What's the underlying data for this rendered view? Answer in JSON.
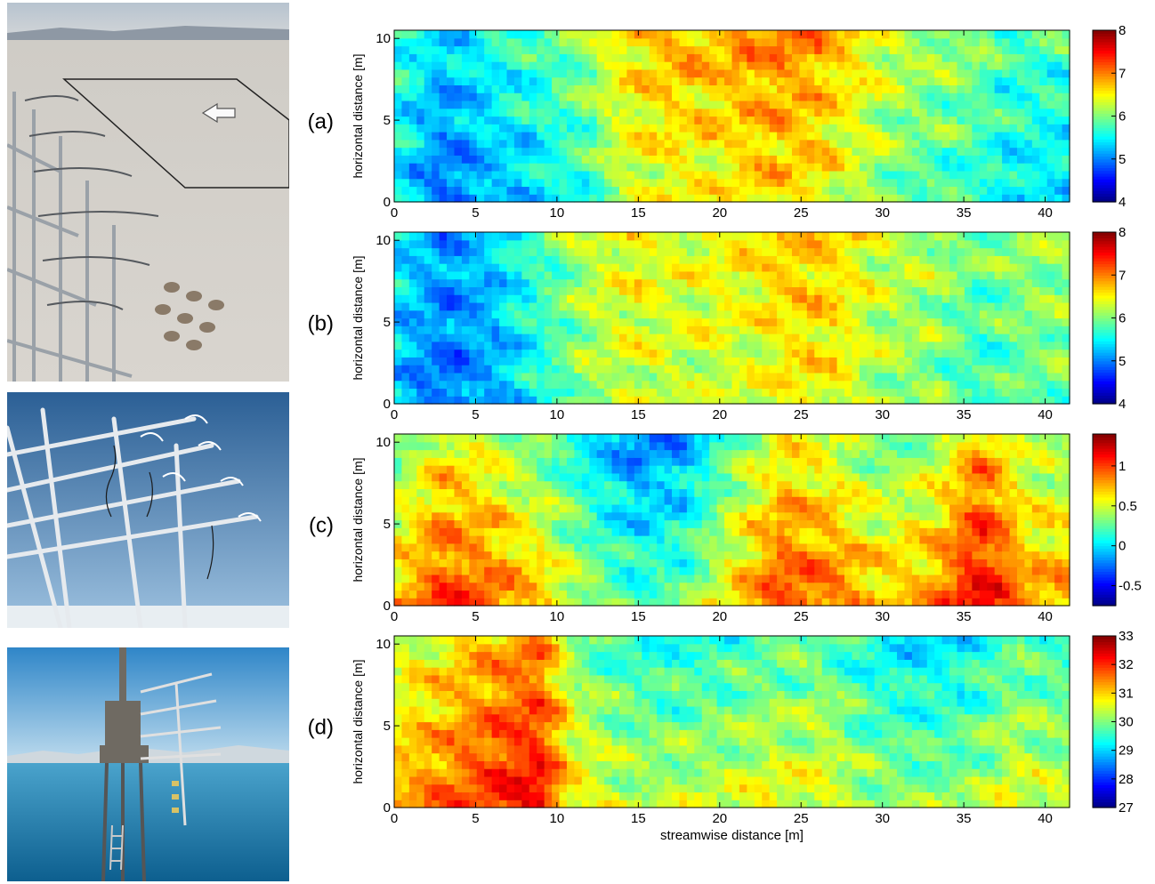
{
  "photos": [
    {
      "name": "salt-flat-sensor-array",
      "icon": "photo-salt-flat"
    },
    {
      "name": "sensor-frame-sky",
      "icon": "photo-sensor-frame"
    },
    {
      "name": "lake-tower",
      "icon": "photo-lake-tower"
    }
  ],
  "chart_data": [
    {
      "type": "heatmap",
      "panel_label": "(a)",
      "ylabel": "horizontal distance [m]",
      "xlabel": "",
      "xlim": [
        0,
        41.5
      ],
      "ylim": [
        0,
        10.5
      ],
      "x_ticks": [
        0,
        5,
        10,
        15,
        20,
        25,
        30,
        35,
        40
      ],
      "y_ticks": [
        0,
        5,
        10
      ],
      "colorbar": {
        "min": 4,
        "max": 8,
        "ticks": [
          "4",
          "5",
          "6",
          "7",
          "8"
        ],
        "tick_values": [
          4,
          5,
          6,
          7,
          8
        ],
        "colormap": "jet"
      },
      "grid": false,
      "x_profile": [
        {
          "x": 0,
          "v": 5.6
        },
        {
          "x": 3,
          "v": 5.1
        },
        {
          "x": 6,
          "v": 5.4
        },
        {
          "x": 9,
          "v": 5.6
        },
        {
          "x": 12,
          "v": 5.9
        },
        {
          "x": 14,
          "v": 6.4
        },
        {
          "x": 17,
          "v": 6.6
        },
        {
          "x": 20,
          "v": 6.6
        },
        {
          "x": 23,
          "v": 6.8
        },
        {
          "x": 26,
          "v": 6.7
        },
        {
          "x": 29,
          "v": 6.3
        },
        {
          "x": 32,
          "v": 6.0
        },
        {
          "x": 35,
          "v": 5.9
        },
        {
          "x": 38,
          "v": 5.6
        },
        {
          "x": 41.5,
          "v": 5.6
        }
      ],
      "y_gradient": 0.2
    },
    {
      "type": "heatmap",
      "panel_label": "(b)",
      "ylabel": "horizontal distance [m]",
      "xlabel": "",
      "xlim": [
        0,
        41.5
      ],
      "ylim": [
        0,
        10.5
      ],
      "x_ticks": [
        0,
        5,
        10,
        15,
        20,
        25,
        30,
        35,
        40
      ],
      "y_ticks": [
        0,
        5,
        10
      ],
      "colorbar": {
        "min": 4,
        "max": 8,
        "ticks": [
          "4",
          "5",
          "6",
          "7",
          "8"
        ],
        "tick_values": [
          4,
          5,
          6,
          7,
          8
        ],
        "colormap": "jet"
      },
      "grid": false,
      "x_profile": [
        {
          "x": 0,
          "v": 5.4
        },
        {
          "x": 3,
          "v": 5.0
        },
        {
          "x": 6,
          "v": 5.2
        },
        {
          "x": 9,
          "v": 5.7
        },
        {
          "x": 12,
          "v": 6.2
        },
        {
          "x": 15,
          "v": 6.4
        },
        {
          "x": 18,
          "v": 6.3
        },
        {
          "x": 21,
          "v": 6.4
        },
        {
          "x": 24,
          "v": 6.6
        },
        {
          "x": 27,
          "v": 6.6
        },
        {
          "x": 30,
          "v": 6.2
        },
        {
          "x": 33,
          "v": 6.1
        },
        {
          "x": 36,
          "v": 5.8
        },
        {
          "x": 39,
          "v": 6.0
        },
        {
          "x": 41.5,
          "v": 6.0
        }
      ],
      "y_gradient": 0.1
    },
    {
      "type": "heatmap",
      "panel_label": "(c)",
      "ylabel": "horizontal distance [m]",
      "xlabel": "",
      "xlim": [
        0,
        41.5
      ],
      "ylim": [
        0,
        10.5
      ],
      "x_ticks": [
        0,
        5,
        10,
        15,
        20,
        25,
        30,
        35,
        40
      ],
      "y_ticks": [
        0,
        5,
        10
      ],
      "colorbar": {
        "min": -0.75,
        "max": 1.4,
        "ticks": [
          "-0.5",
          "0",
          "0.5",
          "1"
        ],
        "tick_values": [
          -0.5,
          0,
          0.5,
          1
        ],
        "colormap": "jet"
      },
      "grid": false,
      "x_profile": [
        {
          "x": 0,
          "v": 0.5
        },
        {
          "x": 3,
          "v": 0.8
        },
        {
          "x": 6,
          "v": 0.7
        },
        {
          "x": 9,
          "v": 0.5
        },
        {
          "x": 12,
          "v": 0.2
        },
        {
          "x": 15,
          "v": 0.0
        },
        {
          "x": 18,
          "v": 0.1
        },
        {
          "x": 21,
          "v": 0.5
        },
        {
          "x": 24,
          "v": 0.8
        },
        {
          "x": 27,
          "v": 0.7
        },
        {
          "x": 30,
          "v": 0.5
        },
        {
          "x": 33,
          "v": 0.6
        },
        {
          "x": 36,
          "v": 1.0
        },
        {
          "x": 39,
          "v": 0.6
        },
        {
          "x": 41.5,
          "v": 0.6
        }
      ],
      "y_gradient": -0.4
    },
    {
      "type": "heatmap",
      "panel_label": "(d)",
      "ylabel": "horizontal distance [m]",
      "xlabel": "streamwise distance [m]",
      "xlim": [
        0,
        41.5
      ],
      "ylim": [
        0,
        10.5
      ],
      "x_ticks": [
        0,
        5,
        10,
        15,
        20,
        25,
        30,
        35,
        40
      ],
      "y_ticks": [
        0,
        5,
        10
      ],
      "colorbar": {
        "min": 27,
        "max": 33,
        "ticks": [
          "27",
          "28",
          "29",
          "30",
          "31",
          "32",
          "33"
        ],
        "tick_values": [
          27,
          28,
          29,
          30,
          31,
          32,
          33
        ],
        "colormap": "jet"
      },
      "grid": false,
      "x_profile": [
        {
          "x": 0,
          "v": 30.8
        },
        {
          "x": 3,
          "v": 31.2
        },
        {
          "x": 6,
          "v": 31.6
        },
        {
          "x": 9,
          "v": 31.9
        },
        {
          "x": 11,
          "v": 30.5
        },
        {
          "x": 14,
          "v": 30.0
        },
        {
          "x": 17,
          "v": 29.9
        },
        {
          "x": 20,
          "v": 30.0
        },
        {
          "x": 23,
          "v": 30.2
        },
        {
          "x": 26,
          "v": 30.3
        },
        {
          "x": 29,
          "v": 29.8
        },
        {
          "x": 32,
          "v": 29.6
        },
        {
          "x": 35,
          "v": 29.7
        },
        {
          "x": 38,
          "v": 30.2
        },
        {
          "x": 41.5,
          "v": 30.0
        }
      ],
      "y_gradient": -0.3
    }
  ]
}
